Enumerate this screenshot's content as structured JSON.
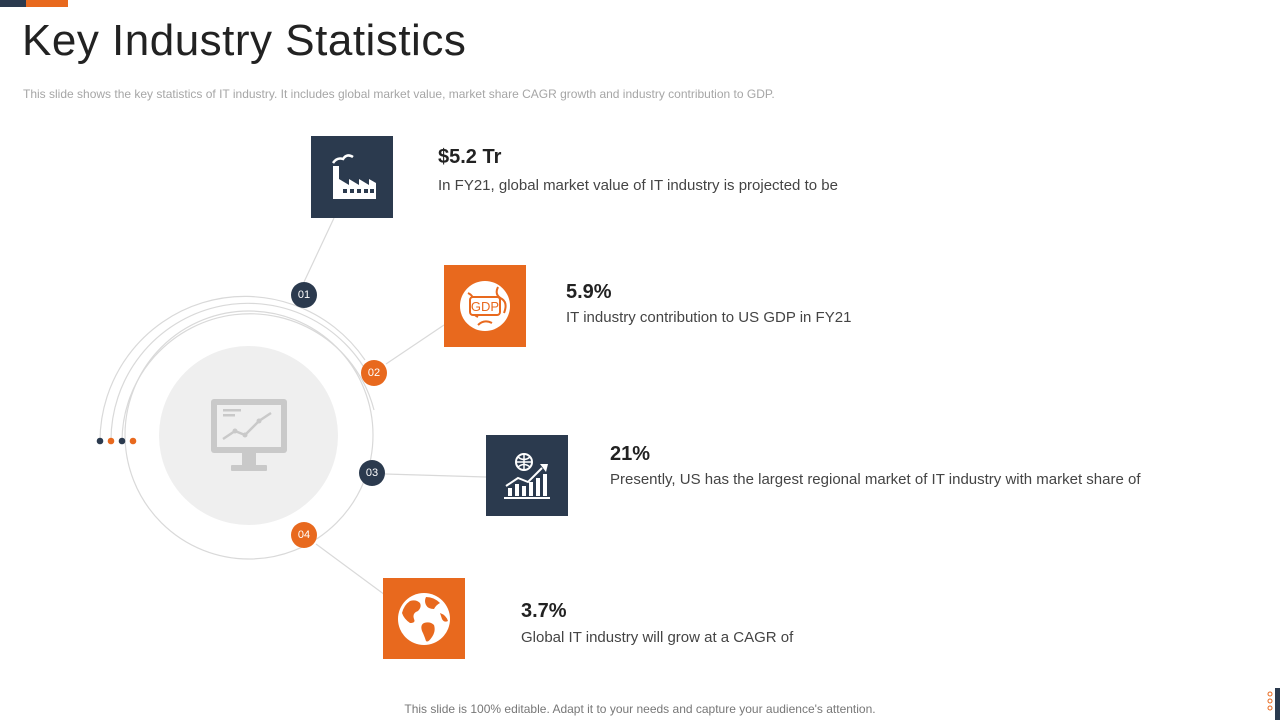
{
  "slide": {
    "title": "Key Industry Statistics",
    "subtitle": "This slide shows the key statistics of IT industry. It includes global market value,  market share CAGR growth  and industry contribution  to GDP.",
    "footer": "This slide is 100% editable. Adapt it to your needs and capture your audience's attention."
  },
  "colors": {
    "dark": "#2b3a4e",
    "orange": "#e8691e",
    "light_gray": "#efefef"
  },
  "center_icon": "monitor-chart-icon",
  "stats": [
    {
      "number": "01",
      "icon": "factory-icon",
      "value": "$5.2 Tr",
      "description": "In  FY21,  global market value  of IT  industry  is projected to be"
    },
    {
      "number": "02",
      "icon": "gdp-globe-icon",
      "value": "5.9%",
      "description": "IT  industry  contribution  to US GDP in FY21"
    },
    {
      "number": "03",
      "icon": "globe-bar-chart-icon",
      "value": "21%",
      "description": "Presently,  US has the largest regional market of IT  industry  with market share of"
    },
    {
      "number": "04",
      "icon": "earth-icon",
      "value": "3.7%",
      "description": "Global IT  industry  will grow at a CAGR of"
    }
  ]
}
